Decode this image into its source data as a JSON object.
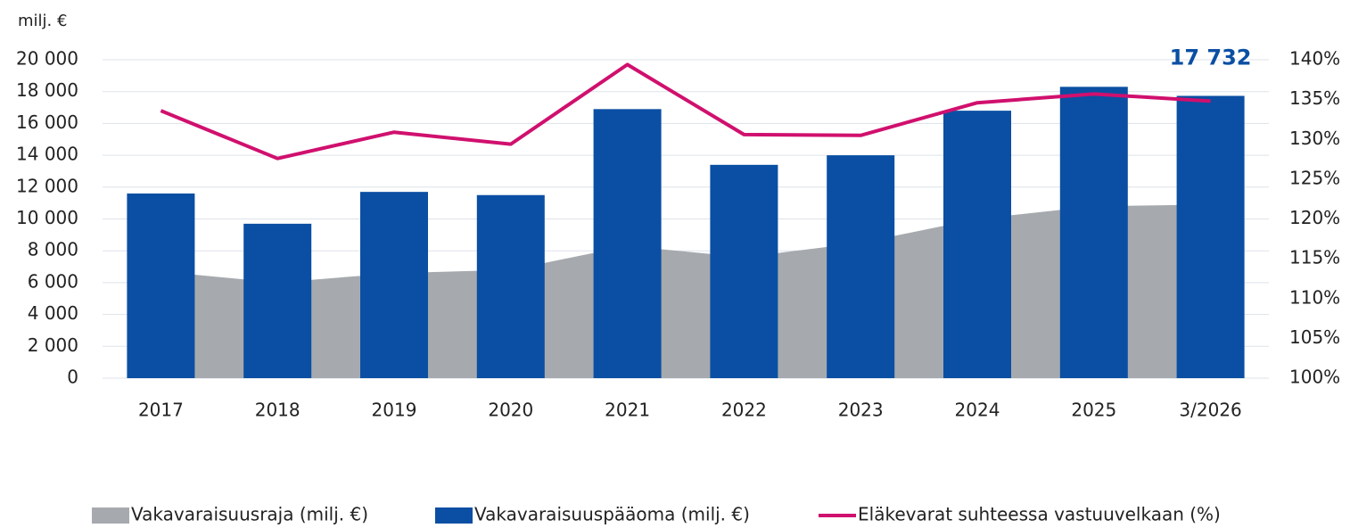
{
  "chart_data": {
    "type": "combo",
    "y_axis_label": "milj. €",
    "categories": [
      "2017",
      "2018",
      "2019",
      "2020",
      "2021",
      "2022",
      "2023",
      "2024",
      "2025",
      "3/2026"
    ],
    "series": [
      {
        "name": "Vakavaraisuusraja (milj. €)",
        "type": "area",
        "color": "#a6aaae",
        "values": [
          6700,
          6000,
          6600,
          6800,
          8300,
          7600,
          8500,
          10000,
          10800,
          10900
        ]
      },
      {
        "name": "Vakavaraisuuspääoma (milj. €)",
        "type": "bar",
        "color": "#0a4fa3",
        "values": [
          11600,
          9700,
          11700,
          11500,
          16900,
          13400,
          14000,
          16800,
          18300,
          17732
        ],
        "value_labels": [
          null,
          null,
          null,
          null,
          null,
          null,
          null,
          null,
          null,
          "17 732"
        ]
      },
      {
        "name": "Eläkevarat suhteessa vastuuvelkaan (%)",
        "type": "line",
        "axis": "y2",
        "color": "#d0106e",
        "values": [
          133.6,
          127.6,
          130.9,
          129.4,
          139.4,
          130.6,
          130.5,
          134.6,
          135.7,
          134.8
        ]
      }
    ],
    "ylim": [
      0,
      20000
    ],
    "yticks": [
      0,
      {
        "value": 2000,
        "label": "2 000"
      },
      {
        "value": 4000,
        "label": "4 000"
      },
      {
        "value": 6000,
        "label": "6 000"
      },
      {
        "value": 8000,
        "label": "8 000"
      },
      {
        "value": 10000,
        "label": "10 000"
      },
      {
        "value": 12000,
        "label": "12 000"
      },
      {
        "value": 14000,
        "label": "14 000"
      },
      {
        "value": 16000,
        "label": "16 000"
      },
      {
        "value": 18000,
        "label": "18 000"
      },
      {
        "value": 20000,
        "label": "20 000"
      }
    ],
    "y2lim": [
      100,
      140
    ],
    "y2ticks": [
      {
        "value": 100,
        "label": "100%"
      },
      {
        "value": 105,
        "label": "105%"
      },
      {
        "value": 110,
        "label": "110%"
      },
      {
        "value": 115,
        "label": "115%"
      },
      {
        "value": 120,
        "label": "120%"
      },
      {
        "value": 125,
        "label": "125%"
      },
      {
        "value": 130,
        "label": "130%"
      },
      {
        "value": 135,
        "label": "135%"
      },
      {
        "value": 140,
        "label": "140%"
      }
    ],
    "grid": true,
    "legend": "bottom"
  }
}
